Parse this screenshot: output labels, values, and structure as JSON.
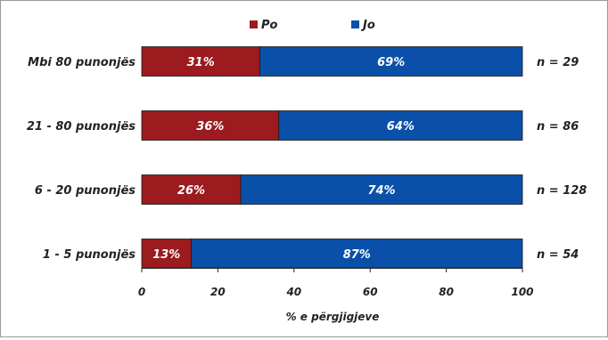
{
  "chart_data": {
    "type": "bar",
    "orientation": "horizontal",
    "stacked": true,
    "categories": [
      "Mbi 80 punonjës",
      "21 - 80 punonjës",
      "6 - 20 punonjës",
      "1 - 5 punonjës"
    ],
    "series": [
      {
        "name": "Po",
        "values": [
          31,
          36,
          26,
          13
        ],
        "labels": [
          "31%",
          "36%",
          "26%",
          "13%"
        ],
        "color": "#9b1b1f"
      },
      {
        "name": "Jo",
        "values": [
          69,
          64,
          74,
          87
        ],
        "labels": [
          "69%",
          "64%",
          "74%",
          "87%"
        ],
        "color": "#0a50a8"
      }
    ],
    "n_labels": [
      "n =  29",
      "n = 86",
      "n = 128",
      "n = 54"
    ],
    "xlabel": "% e përgjigjeve",
    "ylabel": "",
    "xlim": [
      0,
      100
    ],
    "xticks": [
      0,
      20,
      40,
      60,
      80,
      100
    ],
    "xtick_labels": [
      "0",
      "20",
      "40",
      "60",
      "80",
      "100"
    ],
    "grid": false,
    "legend_position": "top-center"
  }
}
